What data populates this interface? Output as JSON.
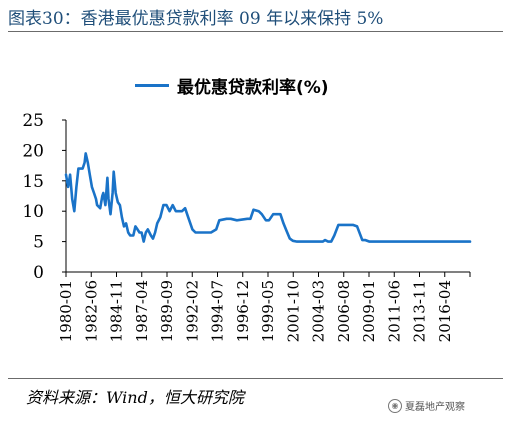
{
  "figure_title": "图表30：香港最优惠贷款利率 09 年以来保持 5%",
  "source_note": "资料来源：Wind，恒大研究院",
  "watermark": {
    "icon": "wechat-icon",
    "text": "夏磊地产观察"
  },
  "colors": {
    "series": "#1a73c8",
    "title": "#1f4e79"
  },
  "chart_data": {
    "type": "line",
    "title": "",
    "xlabel": "",
    "ylabel": "",
    "ylim": [
      0,
      25
    ],
    "yticks": [
      0,
      5,
      10,
      15,
      20,
      25
    ],
    "xlim": [
      1980.0,
      2019.0
    ],
    "x_tick_labels": [
      "1980-01",
      "1982-06",
      "1984-11",
      "1987-04",
      "1989-09",
      "1992-02",
      "1994-07",
      "1996-12",
      "1999-05",
      "2001-10",
      "2004-03",
      "2006-08",
      "2009-01",
      "2011-06",
      "2013-11",
      "2016-04"
    ],
    "legend": {
      "position": "top-center"
    },
    "grid": false,
    "series": [
      {
        "name": "最优惠贷款利率(%)",
        "x": [
          1980.0,
          1980.2,
          1980.4,
          1980.6,
          1980.8,
          1981.0,
          1981.2,
          1981.4,
          1981.6,
          1981.8,
          1981.9,
          1982.1,
          1982.3,
          1982.5,
          1982.7,
          1982.9,
          1983.0,
          1983.3,
          1983.5,
          1983.6,
          1983.8,
          1984.0,
          1984.1,
          1984.3,
          1984.5,
          1984.6,
          1984.8,
          1985.0,
          1985.2,
          1985.4,
          1985.6,
          1985.8,
          1986.0,
          1986.2,
          1986.5,
          1986.7,
          1986.9,
          1987.1,
          1987.3,
          1987.5,
          1987.7,
          1987.9,
          1988.2,
          1988.4,
          1988.6,
          1988.8,
          1989.1,
          1989.4,
          1989.7,
          1990.0,
          1990.3,
          1990.6,
          1990.9,
          1991.2,
          1991.5,
          1991.8,
          1992.2,
          1992.5,
          1993.0,
          1994.0,
          1994.5,
          1994.8,
          1995.5,
          1995.9,
          1996.5,
          1997.5,
          1997.8,
          1998.1,
          1998.6,
          1998.9,
          1999.3,
          1999.6,
          2000.0,
          2000.4,
          2000.7,
          2001.0,
          2001.3,
          2001.6,
          2001.9,
          2002.3,
          2004.8,
          2005.0,
          2005.3,
          2005.6,
          2005.9,
          2006.3,
          2007.0,
          2007.3,
          2007.7,
          2008.1,
          2008.6,
          2008.9,
          2009.3,
          2010.0,
          2019.0
        ],
        "values": [
          16,
          14,
          16,
          12,
          10,
          14,
          17,
          17,
          17,
          18,
          19.5,
          18,
          16,
          14,
          13,
          12,
          11,
          10.5,
          12.5,
          13,
          11,
          15.5,
          12,
          9.5,
          13,
          16.5,
          13,
          11.5,
          11,
          9,
          7.5,
          8,
          6.5,
          6,
          6,
          7.5,
          7,
          6.5,
          6.5,
          5,
          6.5,
          7,
          6,
          5.5,
          6.5,
          8,
          9,
          11,
          11,
          10,
          11,
          10,
          10,
          10,
          10.5,
          9,
          7,
          6.5,
          6.5,
          6.5,
          7,
          8.5,
          8.75,
          8.75,
          8.5,
          8.75,
          8.75,
          10.25,
          10,
          9.5,
          8.5,
          8.5,
          9.5,
          9.5,
          9.5,
          8,
          6.75,
          5.5,
          5.13,
          5,
          5,
          5.25,
          5,
          5,
          6,
          7.75,
          7.75,
          7.75,
          7.75,
          7.5,
          5.25,
          5.25,
          5,
          5,
          5
        ]
      }
    ]
  }
}
